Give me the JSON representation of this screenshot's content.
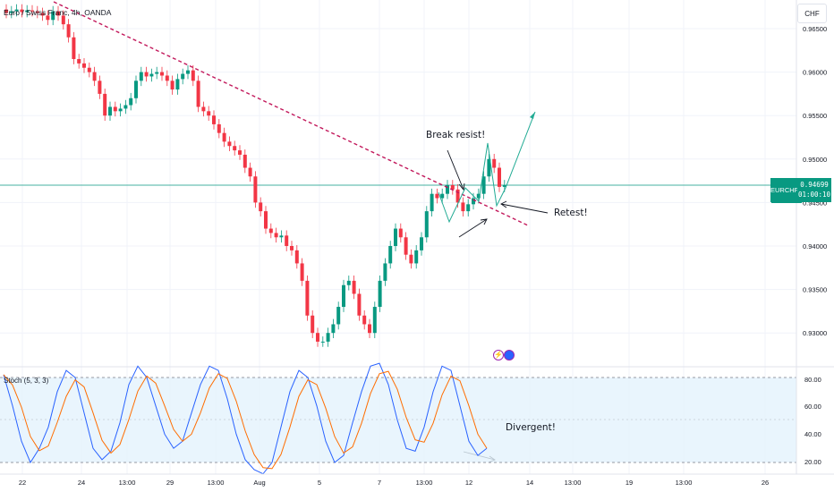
{
  "header": {
    "title": "Euro / Swiss Franc, 4h, OANDA",
    "currency": "CHF"
  },
  "price_axis": {
    "labels": [
      "0.96500",
      "0.96000",
      "0.95500",
      "0.95000",
      "0.94500",
      "0.94000",
      "0.93500",
      "0.93000"
    ],
    "symbol": "EURCHF",
    "last_price": "0.94699",
    "countdown": "01:00:10"
  },
  "time_axis": {
    "labels": [
      "22",
      "24",
      "13:00",
      "29",
      "13:00",
      "Aug",
      "5",
      "7",
      "13:00",
      "12",
      "14",
      "13:00",
      "19",
      "13:00",
      "26"
    ]
  },
  "indicator": {
    "label": "Stoch (5, 3, 3)",
    "levels": [
      "80.00",
      "60.00",
      "40.00",
      "20.00"
    ]
  },
  "annotations": {
    "break": "Break resist!",
    "retest": "Retest!",
    "divergent": "Divergent!"
  },
  "colors": {
    "up": "#089981",
    "down": "#f23645",
    "trendline": "#c2185b",
    "projection": "#22ab94",
    "stoch_k": "#2962ff",
    "stoch_d": "#ff6d00",
    "band": "#e3f2fd"
  },
  "icons": [
    "lightning-icon",
    "earnings-icon"
  ]
}
